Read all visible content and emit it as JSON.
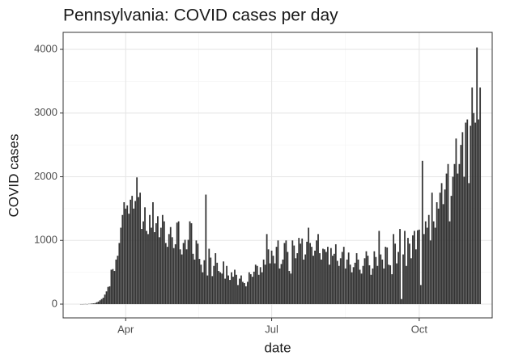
{
  "chart_data": {
    "type": "bar",
    "title": "Pennsylvania: COVID cases per day",
    "x_label": "date",
    "y_label": "COVID cases",
    "color": "#333333",
    "grid": true,
    "xlim": [
      53,
      320.5
    ],
    "xticks": [
      {
        "value": 92,
        "label": "Apr"
      },
      {
        "value": 183,
        "label": "Jul"
      },
      {
        "value": 275,
        "label": "Oct"
      }
    ],
    "ylim": [
      -216,
      4267
    ],
    "yticks": [
      0,
      1000,
      2000,
      3000,
      4000
    ],
    "x": [
      64,
      65,
      66,
      67,
      68,
      69,
      70,
      71,
      72,
      73,
      74,
      75,
      76,
      77,
      78,
      79,
      80,
      81,
      82,
      83,
      84,
      85,
      86,
      87,
      88,
      89,
      90,
      91,
      92,
      93,
      94,
      95,
      96,
      97,
      98,
      99,
      100,
      101,
      102,
      103,
      104,
      105,
      106,
      107,
      108,
      109,
      110,
      111,
      112,
      113,
      114,
      115,
      116,
      117,
      118,
      119,
      120,
      121,
      122,
      123,
      124,
      125,
      126,
      127,
      128,
      129,
      130,
      131,
      132,
      133,
      134,
      135,
      136,
      137,
      138,
      139,
      140,
      141,
      142,
      143,
      144,
      145,
      146,
      147,
      148,
      149,
      150,
      151,
      152,
      153,
      154,
      155,
      156,
      157,
      158,
      159,
      160,
      161,
      162,
      163,
      164,
      165,
      166,
      167,
      168,
      169,
      170,
      171,
      172,
      173,
      174,
      175,
      176,
      177,
      178,
      179,
      180,
      181,
      182,
      183,
      184,
      185,
      186,
      187,
      188,
      189,
      190,
      191,
      192,
      193,
      194,
      195,
      196,
      197,
      198,
      199,
      200,
      201,
      202,
      203,
      204,
      205,
      206,
      207,
      208,
      209,
      210,
      211,
      212,
      213,
      214,
      215,
      216,
      217,
      218,
      219,
      220,
      221,
      222,
      223,
      224,
      225,
      226,
      227,
      228,
      229,
      230,
      231,
      232,
      233,
      234,
      235,
      236,
      237,
      238,
      239,
      240,
      241,
      242,
      243,
      244,
      245,
      246,
      247,
      248,
      249,
      250,
      251,
      252,
      253,
      254,
      255,
      256,
      257,
      258,
      259,
      260,
      261,
      262,
      263,
      264,
      265,
      266,
      267,
      268,
      269,
      270,
      271,
      272,
      273,
      274,
      275,
      276,
      277,
      278,
      279,
      280,
      281,
      282,
      283,
      284,
      285,
      286,
      287,
      288,
      289,
      290,
      291,
      292,
      293,
      294,
      295,
      296,
      297,
      298,
      299,
      300,
      301,
      302,
      303,
      304,
      305,
      306,
      307,
      308,
      309,
      310,
      311,
      312,
      313
    ],
    "values": [
      0,
      0,
      1,
      2,
      0,
      4,
      5,
      10,
      12,
      16,
      30,
      40,
      60,
      80,
      100,
      150,
      200,
      270,
      280,
      540,
      550,
      520,
      700,
      760,
      960,
      1200,
      1400,
      1600,
      1500,
      1550,
      1420,
      1640,
      1700,
      1500,
      1620,
      1990,
      1680,
      1750,
      1180,
      1300,
      1520,
      1150,
      1100,
      1400,
      1200,
      1600,
      1130,
      1270,
      1380,
      1050,
      1200,
      1400,
      1300,
      960,
      900,
      1100,
      1210,
      1050,
      880,
      940,
      1280,
      1300,
      860,
      780,
      960,
      1010,
      860,
      1010,
      1300,
      1270,
      790,
      700,
      1000,
      950,
      710,
      620,
      500,
      690,
      1720,
      450,
      870,
      730,
      440,
      600,
      800,
      650,
      520,
      500,
      480,
      670,
      400,
      600,
      450,
      380,
      500,
      430,
      540,
      460,
      300,
      400,
      450,
      350,
      330,
      280,
      350,
      500,
      470,
      430,
      510,
      620,
      600,
      460,
      580,
      500,
      700,
      620,
      1100,
      860,
      640,
      840,
      760,
      640,
      900,
      1000,
      560,
      630,
      700,
      960,
      1000,
      820,
      520,
      480,
      1000,
      920,
      720,
      800,
      1040,
      950,
      1030,
      700,
      780,
      980,
      1200,
      960,
      900,
      760,
      840,
      1000,
      1100,
      800,
      700,
      870,
      860,
      820,
      900,
      620,
      880,
      760,
      790,
      940,
      680,
      600,
      720,
      820,
      900,
      560,
      700,
      810,
      620,
      500,
      580,
      650,
      800,
      700,
      540,
      480,
      600,
      720,
      830,
      760,
      610,
      460,
      560,
      830,
      740,
      600,
      1150,
      780,
      700,
      560,
      900,
      890,
      620,
      610,
      470,
      1100,
      950,
      640,
      820,
      1180,
      80,
      780,
      1150,
      600,
      1040,
      950,
      720,
      1080,
      1150,
      860,
      1160,
      1170,
      300,
      2250,
      1100,
      1300,
      1200,
      1400,
      1000,
      1750,
      1300,
      1200,
      1600,
      1500,
      1750,
      1900,
      1570,
      1800,
      2050,
      2200,
      1300,
      1700,
      2000,
      2200,
      2600,
      2050,
      2200,
      2500,
      2700,
      2000,
      2850,
      2900,
      1900,
      2800,
      3400,
      3000,
      2850,
      4030,
      2900,
      3400
    ]
  }
}
